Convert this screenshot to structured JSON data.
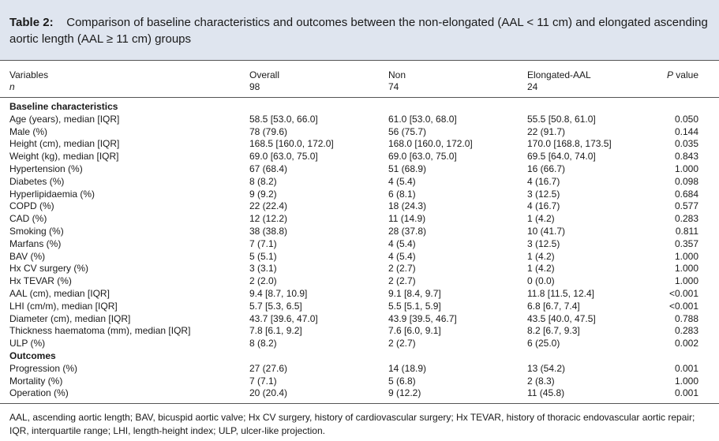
{
  "caption": {
    "label": "Table 2:",
    "text": "Comparison of baseline characteristics and outcomes between the non-elongated (AAL < 11 cm) and elongated ascending aortic length (AAL ≥ 11 cm) groups"
  },
  "header": {
    "variables": "Variables",
    "n": "n",
    "overall": "Overall",
    "overall_n": "98",
    "non": "Non",
    "non_n": "74",
    "elongated": "Elongated-AAL",
    "elongated_n": "24",
    "pvalue_p": "P",
    "pvalue_rest": " value"
  },
  "sections": [
    {
      "title": "Baseline characteristics",
      "rows": [
        {
          "label": "Age (years), median [IQR]",
          "overall": "58.5 [53.0, 66.0]",
          "non": "61.0 [53.0, 68.0]",
          "elongated": "55.5 [50.8, 61.0]",
          "p": "0.050"
        },
        {
          "label": "Male (%)",
          "overall": "78 (79.6)",
          "non": "56 (75.7)",
          "elongated": "22 (91.7)",
          "p": "0.144"
        },
        {
          "label": "Height (cm), median [IQR]",
          "overall": "168.5 [160.0, 172.0]",
          "non": "168.0 [160.0, 172.0]",
          "elongated": "170.0 [168.8, 173.5]",
          "p": "0.035"
        },
        {
          "label": "Weight (kg), median [IQR]",
          "overall": "69.0 [63.0, 75.0]",
          "non": "69.0 [63.0, 75.0]",
          "elongated": "69.5 [64.0, 74.0]",
          "p": "0.843"
        },
        {
          "label": "Hypertension (%)",
          "overall": "67 (68.4)",
          "non": "51 (68.9)",
          "elongated": "16 (66.7)",
          "p": "1.000"
        },
        {
          "label": "Diabetes (%)",
          "overall": "8 (8.2)",
          "non": "4 (5.4)",
          "elongated": "4 (16.7)",
          "p": "0.098"
        },
        {
          "label": "Hyperlipidaemia (%)",
          "overall": "9 (9.2)",
          "non": "6 (8.1)",
          "elongated": "3 (12.5)",
          "p": "0.684"
        },
        {
          "label": "COPD (%)",
          "overall": "22 (22.4)",
          "non": "18 (24.3)",
          "elongated": "4 (16.7)",
          "p": "0.577"
        },
        {
          "label": "CAD (%)",
          "overall": "12 (12.2)",
          "non": "11 (14.9)",
          "elongated": "1 (4.2)",
          "p": "0.283"
        },
        {
          "label": "Smoking (%)",
          "overall": "38 (38.8)",
          "non": "28 (37.8)",
          "elongated": "10 (41.7)",
          "p": "0.811"
        },
        {
          "label": "Marfans (%)",
          "overall": "7 (7.1)",
          "non": "4 (5.4)",
          "elongated": "3 (12.5)",
          "p": "0.357"
        },
        {
          "label": "BAV (%)",
          "overall": "5 (5.1)",
          "non": "4 (5.4)",
          "elongated": "1 (4.2)",
          "p": "1.000"
        },
        {
          "label": "Hx CV surgery (%)",
          "overall": "3 (3.1)",
          "non": "2 (2.7)",
          "elongated": "1 (4.2)",
          "p": "1.000"
        },
        {
          "label": "Hx TEVAR (%)",
          "overall": "2 (2.0)",
          "non": "2 (2.7)",
          "elongated": "0 (0.0)",
          "p": "1.000"
        },
        {
          "label": "AAL (cm), median [IQR]",
          "overall": "9.4 [8.7, 10.9]",
          "non": "9.1 [8.4, 9.7]",
          "elongated": "11.8 [11.5, 12.4]",
          "p": "<0.001"
        },
        {
          "label": "LHI (cm/m), median [IQR]",
          "overall": "5.7 [5.3, 6.5]",
          "non": "5.5 [5.1, 5.9]",
          "elongated": "6.8 [6.7, 7.4]",
          "p": "<0.001"
        },
        {
          "label": "Diameter (cm), median [IQR]",
          "overall": "43.7 [39.6, 47.0]",
          "non": "43.9 [39.5, 46.7]",
          "elongated": "43.5 [40.0, 47.5]",
          "p": "0.788"
        },
        {
          "label": "Thickness haematoma (mm), median [IQR]",
          "overall": "7.8 [6.1, 9.2]",
          "non": "7.6 [6.0, 9.1]",
          "elongated": "8.2 [6.7, 9.3]",
          "p": "0.283"
        },
        {
          "label": "ULP (%)",
          "overall": "8 (8.2)",
          "non": "2 (2.7)",
          "elongated": "6 (25.0)",
          "p": "0.002"
        }
      ]
    },
    {
      "title": "Outcomes",
      "rows": [
        {
          "label": "Progression (%)",
          "overall": "27 (27.6)",
          "non": "14 (18.9)",
          "elongated": "13 (54.2)",
          "p": "0.001"
        },
        {
          "label": "Mortality (%)",
          "overall": "7 (7.1)",
          "non": "5 (6.8)",
          "elongated": "2 (8.3)",
          "p": "1.000"
        },
        {
          "label": "Operation (%)",
          "overall": "20 (20.4)",
          "non": "9 (12.2)",
          "elongated": "11 (45.8)",
          "p": "0.001"
        }
      ]
    }
  ],
  "footnote": "AAL, ascending aortic length; BAV, bicuspid aortic valve; Hx CV surgery, history of cardiovascular surgery; Hx TEVAR, history of thoracic endovascular aortic repair; IQR, interquartile range; LHI, length-height index; ULP, ulcer-like projection."
}
